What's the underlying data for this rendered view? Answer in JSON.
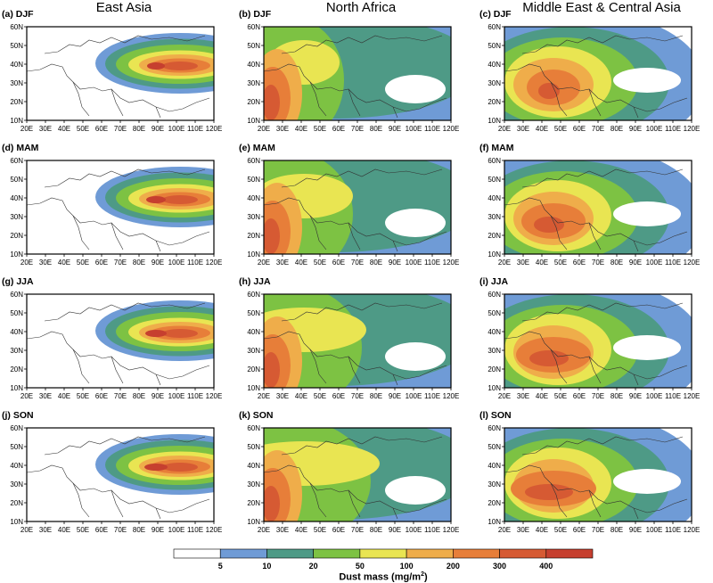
{
  "columns": [
    "East Asia",
    "North Africa",
    "Middle East & Central Asia"
  ],
  "panels": [
    {
      "label": "(a) DJF",
      "source": "east-asia"
    },
    {
      "label": "(b) DJF",
      "source": "north-africa"
    },
    {
      "label": "(c) DJF",
      "source": "middle-east"
    },
    {
      "label": "(d) MAM",
      "source": "east-asia"
    },
    {
      "label": "(e) MAM",
      "source": "north-africa"
    },
    {
      "label": "(f) MAM",
      "source": "middle-east"
    },
    {
      "label": "(g) JJA",
      "source": "east-asia"
    },
    {
      "label": "(h) JJA",
      "source": "north-africa"
    },
    {
      "label": "(i) JJA",
      "source": "middle-east"
    },
    {
      "label": "(j) SON",
      "source": "east-asia"
    },
    {
      "label": "(k) SON",
      "source": "north-africa"
    },
    {
      "label": "(l) SON",
      "source": "middle-east"
    }
  ],
  "axes": {
    "x_ticks": [
      "20E",
      "30E",
      "40E",
      "50E",
      "60E",
      "70E",
      "80E",
      "90E",
      "100E",
      "110E",
      "120E"
    ],
    "y_ticks": [
      "10N",
      "20N",
      "30N",
      "40N",
      "50N",
      "60N"
    ],
    "lon_range": [
      20,
      120
    ],
    "lat_range": [
      10,
      60
    ]
  },
  "legend": {
    "title": "Dust mass (mg/m",
    "title_sup": "2",
    "title_end": ")",
    "levels": [
      "5",
      "10",
      "20",
      "50",
      "100",
      "200",
      "300",
      "400"
    ],
    "colors": [
      "#ffffff",
      "#6f9bd6",
      "#4e9a86",
      "#7dc243",
      "#e9e552",
      "#efad4a",
      "#e77e39",
      "#d65a33",
      "#c63f2f"
    ]
  }
}
